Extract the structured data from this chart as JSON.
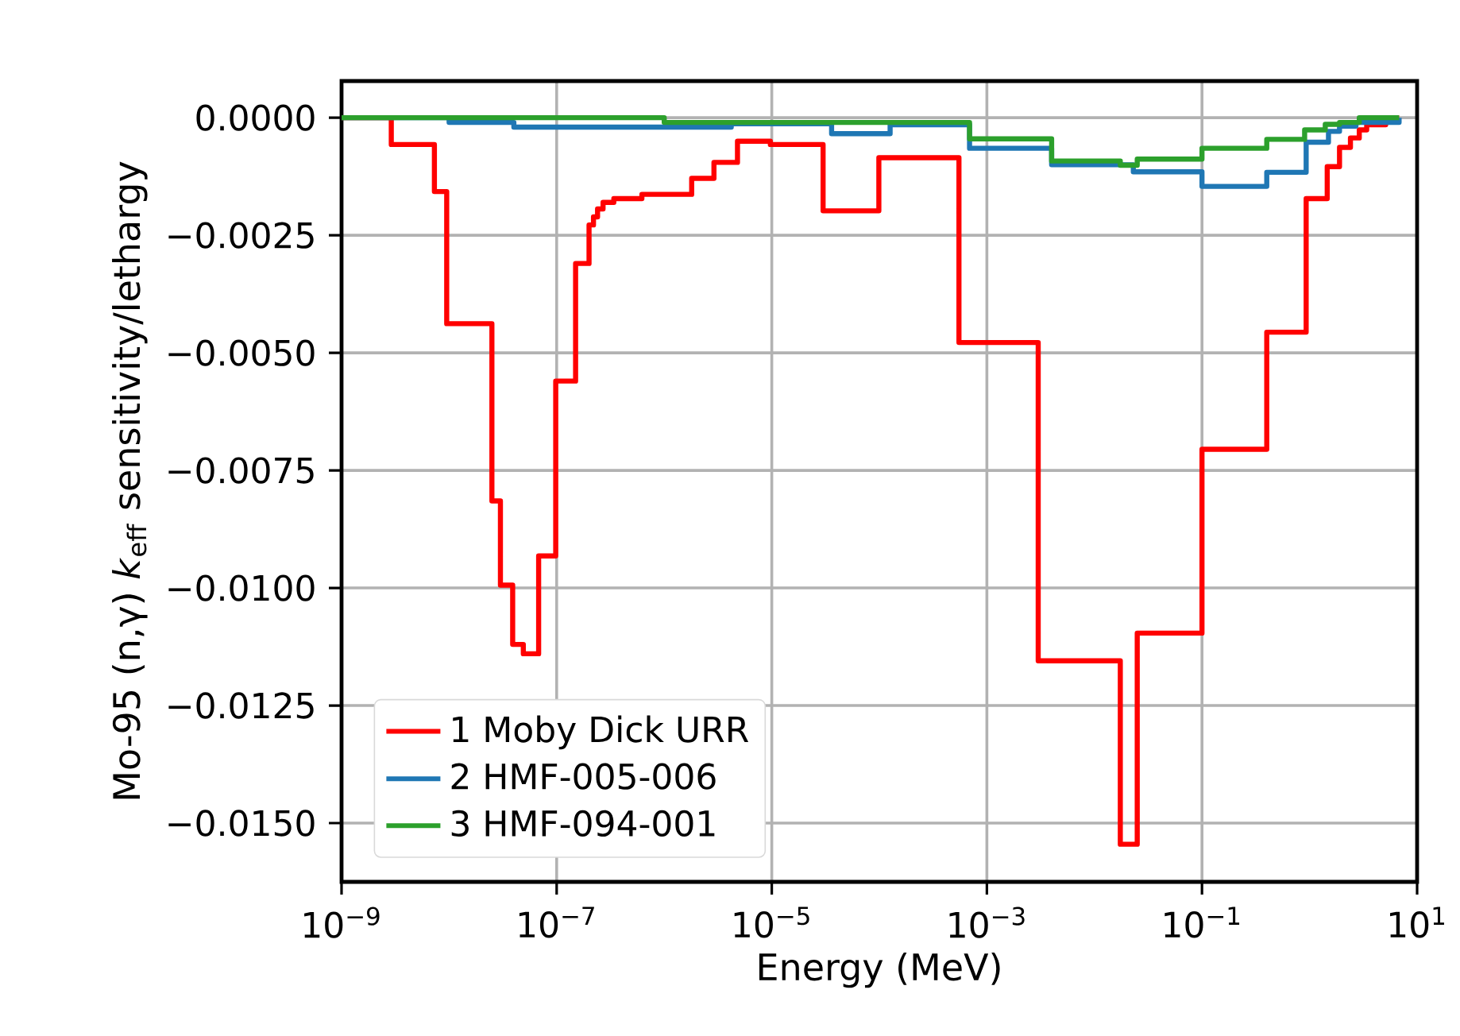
{
  "chart_data": {
    "type": "step",
    "xlabel": "Energy (MeV)",
    "ylabel": "Mo-95 (n,γ) *k*$_{eff}$ sensitivity/lethargy",
    "log": "x",
    "grid": true,
    "legend": "bottom left",
    "line_style": "solid",
    "xlim": [
      1e-09,
      10
    ],
    "ylim": [
      -0.01625,
      0.00078
    ],
    "xticks": [
      {
        "value": 1e-09,
        "label": "10$^{−9}$"
      },
      {
        "value": 1e-07,
        "label": "10$^{−7}$"
      },
      {
        "value": 1e-05,
        "label": "10$^{−5}$"
      },
      {
        "value": 0.001,
        "label": "10$^{−3}$"
      },
      {
        "value": 0.1,
        "label": "10$^{−1}$"
      },
      {
        "value": 10,
        "label": "10$^{1}$"
      }
    ],
    "yticks": [
      {
        "value": 0,
        "label": "0.0000"
      },
      {
        "value": -0.0025,
        "label": "−0.0025"
      },
      {
        "value": -0.005,
        "label": "−0.0050"
      },
      {
        "value": -0.0075,
        "label": "−0.0075"
      },
      {
        "value": -0.01,
        "label": "−0.0100"
      },
      {
        "value": -0.0125,
        "label": "−0.0125"
      },
      {
        "value": -0.015,
        "label": "−0.0150"
      }
    ],
    "series": [
      {
        "name": "1 Moby Dick URR",
        "color": "#ff0000",
        "x": [
          1e-09,
          2.9e-09,
          7.3e-09,
          9.5e-09,
          2.5e-08,
          3e-08,
          3.9e-08,
          4.9e-08,
          6.8e-08,
          9.8e-08,
          1.5e-07,
          2e-07,
          2.2e-07,
          2.4e-07,
          2.7e-07,
          3.4e-07,
          6.2e-07,
          1.8e-06,
          2.9e-06,
          4.8e-06,
          9.7e-06,
          3e-05,
          9.9e-05,
          0.00055,
          0.003,
          0.0174,
          0.025,
          0.1,
          0.4,
          0.93,
          1.46,
          1.9,
          2.4,
          2.9,
          3.4,
          5.1,
          6.8
        ],
        "values": [
          0,
          -0.00057,
          -0.00157,
          -0.00438,
          -0.00815,
          -0.00994,
          -0.0112,
          -0.0114,
          -0.00932,
          -0.0056,
          -0.0031,
          -0.00228,
          -0.00211,
          -0.00194,
          -0.0018,
          -0.00172,
          -0.00163,
          -0.00129,
          -0.00095,
          -0.0005,
          -0.00057,
          -0.00198,
          -0.00085,
          -0.00478,
          -0.01155,
          -0.01545,
          -0.01096,
          -0.00705,
          -0.00456,
          -0.00172,
          -0.00104,
          -0.00063,
          -0.00043,
          -0.00026,
          -0.00015,
          0,
          0
        ]
      },
      {
        "name": "2 HMF-005-006",
        "color": "#1f77b4",
        "x": [
          1e-09,
          1e-08,
          4e-08,
          4.2e-06,
          3.6e-05,
          0.000126,
          0.00069,
          0.004,
          0.023,
          0.1,
          0.4,
          0.93,
          1.5,
          1.9,
          2.7,
          6.8
        ],
        "values": [
          0,
          -0.0001,
          -0.0002,
          -0.00013,
          -0.00034,
          -0.00015,
          -0.00065,
          -0.001,
          -0.00115,
          -0.00146,
          -0.00116,
          -0.00052,
          -0.00029,
          -0.00018,
          -0.0001,
          0
        ]
      },
      {
        "name": "3 HMF-094-001",
        "color": "#2ca02c",
        "x": [
          1e-09,
          1e-06,
          0.00069,
          0.004,
          0.0174,
          0.025,
          0.1,
          0.4,
          0.9,
          1.4,
          1.9,
          2.9,
          6.8
        ],
        "values": [
          0,
          -0.0001,
          -0.00045,
          -0.00092,
          -0.00101,
          -0.00088,
          -0.00065,
          -0.00046,
          -0.00026,
          -0.00014,
          -0.0001,
          0,
          0
        ]
      }
    ]
  }
}
